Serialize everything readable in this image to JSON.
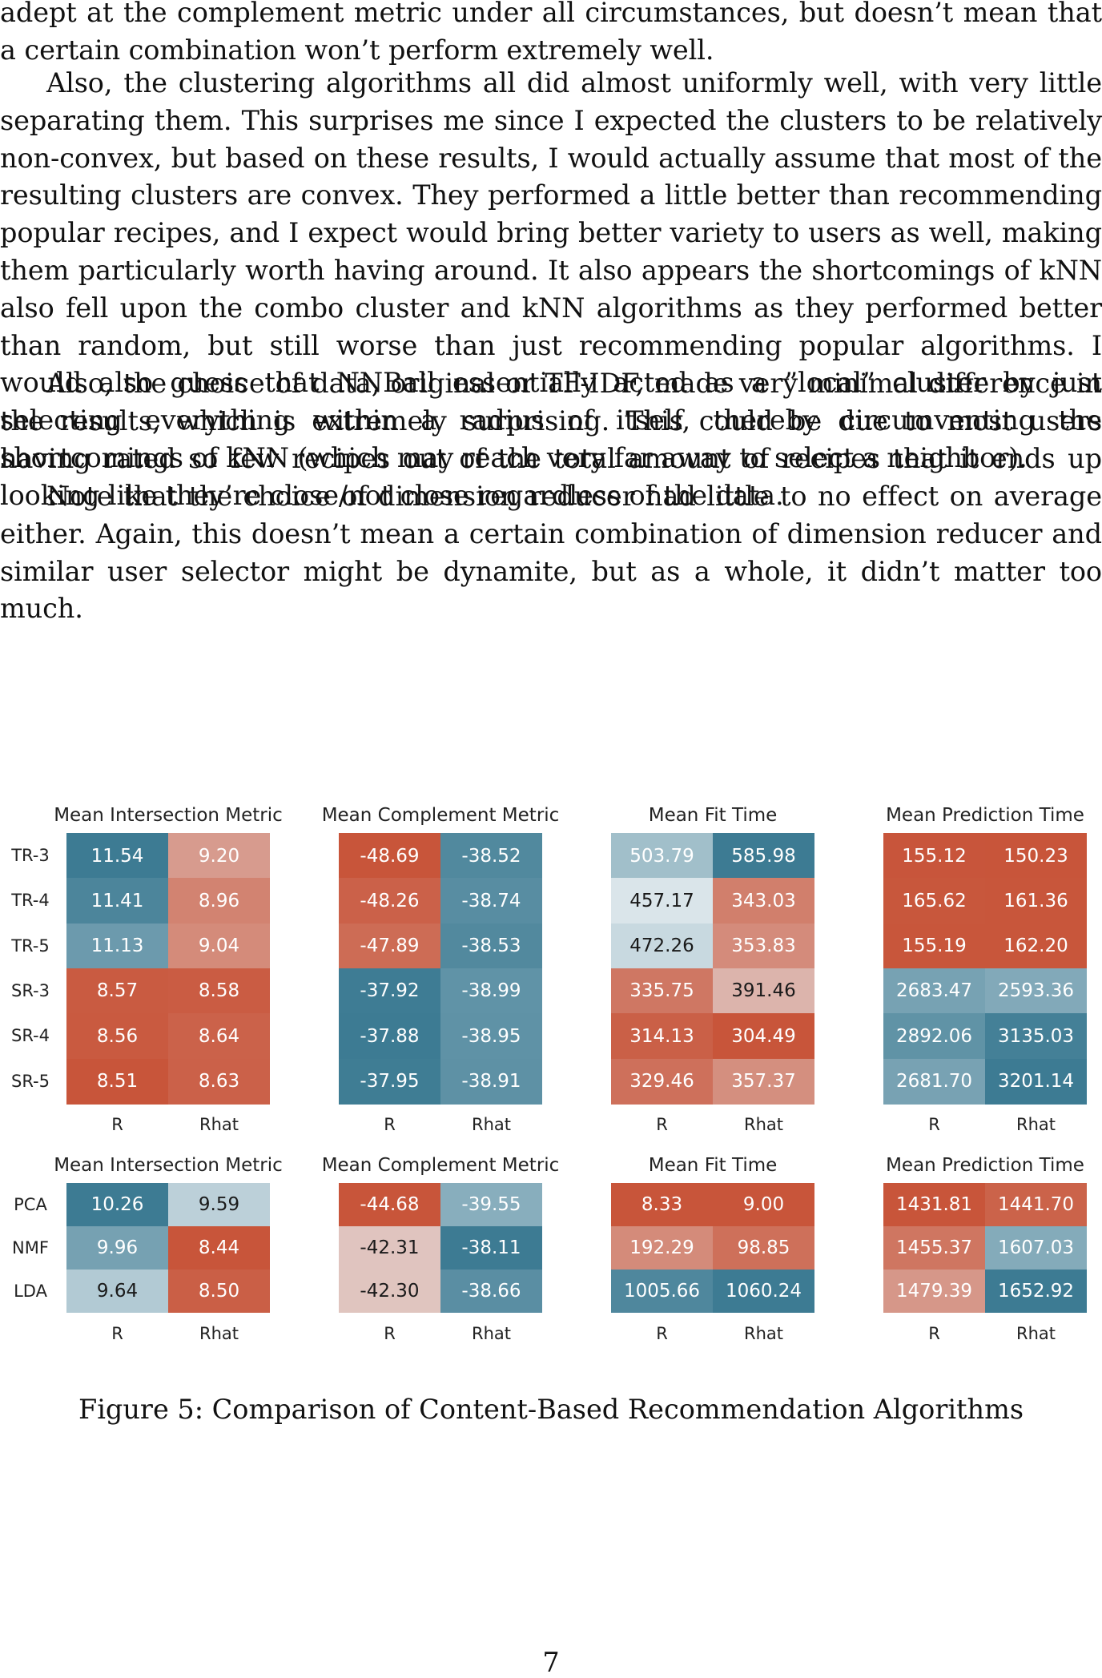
{
  "paragraphs": [
    "adept at the complement metric under all circumstances, but doesn’t mean that a certain combination won’t perform extremely well.",
    "Also, the clustering algorithms all did almost uniformly well, with very little separating them. This surprises me since I expected the clusters to be relatively non-convex, but based on these results, I would actually assume that most of the resulting clusters are convex. They performed a little better than recommending popular recipes, and I expect would bring better variety to users as well, making them particularly worth having around. It also appears the shortcomings of kNN also fell upon the combo cluster and kNN algorithms as they performed better than random, but still worse than just recommending popular algorithms. I would also guess that NNBall essentially acted as a ”local” cluster by just selecting everything within a radius of itself, thereby circumventing the shortcomings of kNN (which may reach very far away to select a neighbor).",
    "Also, the choice of data, original or TF-IDF, made very minimal difference in the results, which is extremely surprising. This could be due to most users having rated so few recipes out of the total amount of recipes that it ends up looking like they’re close/not close regardless of the data.",
    "Note that the choice of dimension reducer had little to no effect on average either. Again, this doesn’t mean a certain combination of dimension reducer and similar user selector might be dynamite, but as a whole, it didn’t matter too much."
  ],
  "chart_data": [
    {
      "type": "heatmap",
      "title": "Mean Intersection Metric",
      "rows": [
        "TR-3",
        "TR-4",
        "TR-5",
        "SR-3",
        "SR-4",
        "SR-5"
      ],
      "columns": [
        "R",
        "Rhat"
      ],
      "values": [
        [
          11.54,
          9.2
        ],
        [
          11.41,
          8.96
        ],
        [
          11.13,
          9.04
        ],
        [
          8.57,
          8.58
        ],
        [
          8.56,
          8.64
        ],
        [
          8.51,
          8.63
        ]
      ],
      "labels": [
        [
          "11.54",
          "9.20"
        ],
        [
          "11.41",
          "8.96"
        ],
        [
          "11.13",
          "9.04"
        ],
        [
          "8.57",
          "8.58"
        ],
        [
          "8.56",
          "8.64"
        ],
        [
          "8.51",
          "8.63"
        ]
      ],
      "colormap": "diverging teal-high to red-low",
      "higher_is_blue": true
    },
    {
      "type": "heatmap",
      "title": "Mean Complement Metric",
      "rows": [
        "TR-3",
        "TR-4",
        "TR-5",
        "SR-3",
        "SR-4",
        "SR-5"
      ],
      "columns": [
        "R",
        "Rhat"
      ],
      "values": [
        [
          -48.69,
          -38.52
        ],
        [
          -48.26,
          -38.74
        ],
        [
          -47.89,
          -38.53
        ],
        [
          -37.92,
          -38.99
        ],
        [
          -37.88,
          -38.95
        ],
        [
          -37.95,
          -38.91
        ]
      ],
      "labels": [
        [
          "-48.69",
          "-38.52"
        ],
        [
          "-48.26",
          "-38.74"
        ],
        [
          "-47.89",
          "-38.53"
        ],
        [
          "-37.92",
          "-38.99"
        ],
        [
          "-37.88",
          "-38.95"
        ],
        [
          "-37.95",
          "-38.91"
        ]
      ],
      "higher_is_blue": true
    },
    {
      "type": "heatmap",
      "title": "Mean Fit Time",
      "rows": [
        "TR-3",
        "TR-4",
        "TR-5",
        "SR-3",
        "SR-4",
        "SR-5"
      ],
      "columns": [
        "R",
        "Rhat"
      ],
      "values": [
        [
          503.79,
          585.98
        ],
        [
          457.17,
          343.03
        ],
        [
          472.26,
          353.83
        ],
        [
          335.75,
          391.46
        ],
        [
          314.13,
          304.49
        ],
        [
          329.46,
          357.37
        ]
      ],
      "labels": [
        [
          "503.79",
          "585.98"
        ],
        [
          "457.17",
          "343.03"
        ],
        [
          "472.26",
          "353.83"
        ],
        [
          "335.75",
          "391.46"
        ],
        [
          "314.13",
          "304.49"
        ],
        [
          "329.46",
          "357.37"
        ]
      ],
      "higher_is_blue": true
    },
    {
      "type": "heatmap",
      "title": "Mean Prediction Time",
      "rows": [
        "TR-3",
        "TR-4",
        "TR-5",
        "SR-3",
        "SR-4",
        "SR-5"
      ],
      "columns": [
        "R",
        "Rhat"
      ],
      "values": [
        [
          155.12,
          150.23
        ],
        [
          165.62,
          161.36
        ],
        [
          155.19,
          162.2
        ],
        [
          2683.47,
          2593.36
        ],
        [
          2892.06,
          3135.03
        ],
        [
          2681.7,
          3201.14
        ]
      ],
      "labels": [
        [
          "155.12",
          "150.23"
        ],
        [
          "165.62",
          "161.36"
        ],
        [
          "155.19",
          "162.20"
        ],
        [
          "2683.47",
          "2593.36"
        ],
        [
          "2892.06",
          "3135.03"
        ],
        [
          "2681.70",
          "3201.14"
        ]
      ],
      "higher_is_blue": true
    },
    {
      "type": "heatmap",
      "title": "Mean Intersection Metric",
      "rows": [
        "PCA",
        "NMF",
        "LDA"
      ],
      "columns": [
        "R",
        "Rhat"
      ],
      "values": [
        [
          10.26,
          9.59
        ],
        [
          9.96,
          8.44
        ],
        [
          9.64,
          8.5
        ]
      ],
      "labels": [
        [
          "10.26",
          "9.59"
        ],
        [
          "9.96",
          "8.44"
        ],
        [
          "9.64",
          "8.50"
        ]
      ],
      "higher_is_blue": true
    },
    {
      "type": "heatmap",
      "title": "Mean Complement Metric",
      "rows": [
        "PCA",
        "NMF",
        "LDA"
      ],
      "columns": [
        "R",
        "Rhat"
      ],
      "values": [
        [
          -44.68,
          -39.55
        ],
        [
          -42.31,
          -38.11
        ],
        [
          -42.3,
          -38.66
        ]
      ],
      "labels": [
        [
          "-44.68",
          "-39.55"
        ],
        [
          "-42.31",
          "-38.11"
        ],
        [
          "-42.30",
          "-38.66"
        ]
      ],
      "higher_is_blue": true
    },
    {
      "type": "heatmap",
      "title": "Mean Fit Time",
      "rows": [
        "PCA",
        "NMF",
        "LDA"
      ],
      "columns": [
        "R",
        "Rhat"
      ],
      "values": [
        [
          8.33,
          9.0
        ],
        [
          192.29,
          98.85
        ],
        [
          1005.66,
          1060.24
        ]
      ],
      "labels": [
        [
          "8.33",
          "9.00"
        ],
        [
          "192.29",
          "98.85"
        ],
        [
          "1005.66",
          "1060.24"
        ]
      ],
      "higher_is_blue": true
    },
    {
      "type": "heatmap",
      "title": "Mean Prediction Time",
      "rows": [
        "PCA",
        "NMF",
        "LDA"
      ],
      "columns": [
        "R",
        "Rhat"
      ],
      "values": [
        [
          1431.81,
          1441.7
        ],
        [
          1455.37,
          1607.03
        ],
        [
          1479.39,
          1652.92
        ]
      ],
      "labels": [
        [
          "1431.81",
          "1441.70"
        ],
        [
          "1455.37",
          "1607.03"
        ],
        [
          "1479.39",
          "1652.92"
        ]
      ],
      "higher_is_blue": true
    }
  ],
  "colors": {
    "high": "#3d7b93",
    "mid": "#e9eff2",
    "low": "#c8553a"
  },
  "caption": "Figure 5: Comparison of Content-Based Recommendation Algorithms",
  "page_number": "7"
}
